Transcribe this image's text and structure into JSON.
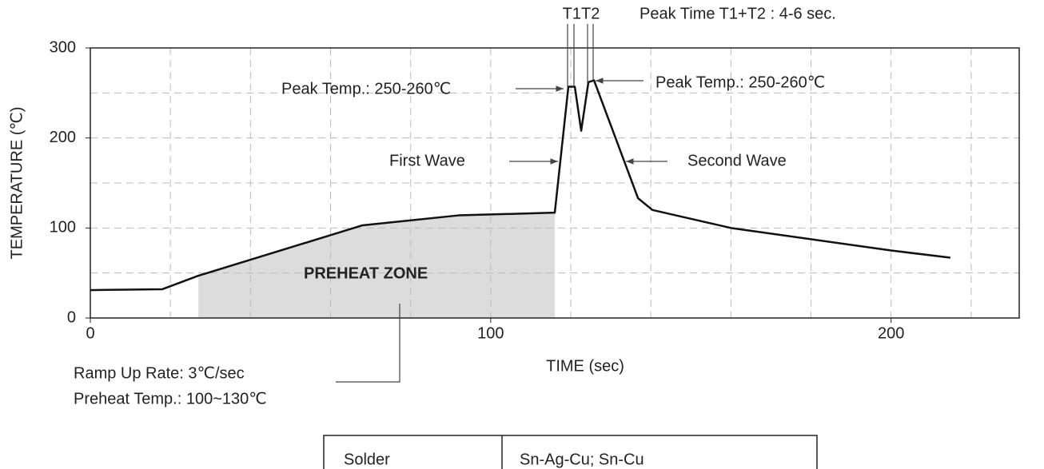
{
  "chart_data": {
    "type": "line",
    "xlabel": "TIME (sec)",
    "ylabel": "TEMPERATURE (℃)",
    "xlim": [
      0,
      232
    ],
    "ylim": [
      0,
      300
    ],
    "xticks": [
      0,
      100,
      200
    ],
    "yticks": [
      0,
      100,
      200,
      300
    ],
    "xgrid": [
      20,
      40,
      60,
      80,
      100,
      120,
      140,
      160,
      180,
      200,
      220
    ],
    "ygrid": [
      50,
      100,
      150,
      200,
      250
    ],
    "grid": true,
    "shade_range": [
      27,
      116
    ],
    "shade_color": "#dcdcdc",
    "series": [
      {
        "color": "#111",
        "x": [
          0,
          18,
          27,
          68,
          92,
          116,
          119.4,
          121,
          122.6,
          124.4,
          125.8,
          136.8,
          140.4,
          160,
          200,
          214.8
        ],
        "values": [
          31,
          32,
          47,
          103,
          114,
          117,
          257,
          257,
          208,
          262,
          264,
          133,
          120,
          100,
          75,
          67
        ]
      }
    ],
    "annotations": [
      "T1T2",
      "Peak Time T1+T2 : 4-6 sec.",
      "Peak Temp.: 250-260℃",
      "Peak Temp.: 250-260℃",
      "First Wave",
      "Second Wave",
      "PREHEAT ZONE",
      "Ramp Up Rate: 3℃/sec",
      "Preheat Temp.: 100~130℃"
    ]
  },
  "table": {
    "rows": [
      [
        "Solder",
        "Sn-Ag-Cu; Sn-Cu"
      ]
    ]
  }
}
